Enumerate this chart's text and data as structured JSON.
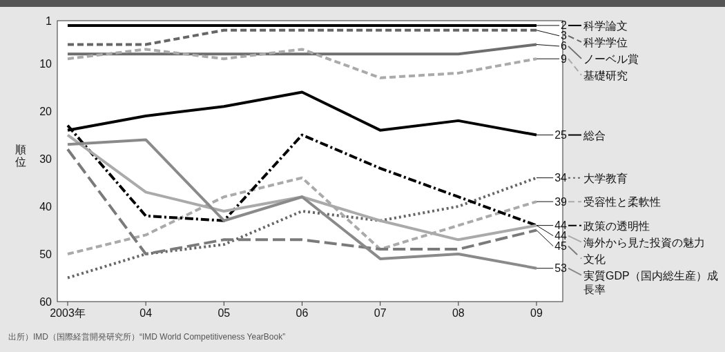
{
  "chart_data": {
    "type": "line",
    "ylabel": "順位",
    "categories": [
      "2003年",
      "04",
      "05",
      "06",
      "07",
      "08",
      "09"
    ],
    "ylim": [
      60,
      1
    ],
    "yticks": [
      1,
      10,
      20,
      30,
      40,
      50,
      60
    ],
    "grid": false,
    "legend": "right",
    "marker": "none",
    "series": [
      {
        "name": "科学論文",
        "color": "#000000",
        "line_style": "solid",
        "values": [
          2,
          2,
          2,
          2,
          2,
          2,
          2
        ],
        "value_labels": [
          null,
          null,
          null,
          null,
          null,
          null,
          "2"
        ]
      },
      {
        "name": "科学学位",
        "color": "#666666",
        "line_style": "dashed",
        "values": [
          6,
          6,
          3,
          3,
          3,
          3,
          3
        ],
        "value_labels": [
          null,
          null,
          null,
          null,
          null,
          null,
          "3"
        ]
      },
      {
        "name": "ノーベル賞",
        "color": "#6e6e6e",
        "line_style": "solid",
        "values": [
          8,
          8,
          8,
          8,
          8,
          8,
          6
        ],
        "value_labels": [
          null,
          null,
          null,
          null,
          null,
          null,
          "6"
        ]
      },
      {
        "name": "基礎研究",
        "color": "#aaaaaa",
        "line_style": "dashed",
        "values": [
          9,
          7,
          9,
          7,
          13,
          12,
          9
        ],
        "value_labels": [
          null,
          null,
          null,
          null,
          null,
          null,
          "9"
        ]
      },
      {
        "name": "総合",
        "color": "#000000",
        "line_style": "solid",
        "values": [
          24,
          21,
          19,
          16,
          24,
          22,
          25
        ],
        "value_labels": [
          null,
          null,
          null,
          null,
          null,
          null,
          "25"
        ]
      },
      {
        "name": "大学教育",
        "color": "#666666",
        "line_style": "dotted",
        "values": [
          55,
          50,
          48,
          41,
          43,
          40,
          34
        ],
        "value_labels": [
          null,
          null,
          null,
          null,
          null,
          null,
          "34"
        ]
      },
      {
        "name": "受容性と柔軟性",
        "color": "#aaaaaa",
        "line_style": "dashed",
        "values": [
          50,
          46,
          38,
          34,
          49,
          44,
          39
        ],
        "value_labels": [
          null,
          null,
          null,
          null,
          null,
          null,
          "39"
        ]
      },
      {
        "name": "政策の透明性",
        "color": "#000000",
        "line_style": "dashdot",
        "values": [
          23,
          42,
          43,
          25,
          32,
          38,
          44
        ],
        "value_labels": [
          null,
          null,
          null,
          null,
          null,
          null,
          "44"
        ]
      },
      {
        "name": "海外から見た投資の魅力",
        "color": "#aaaaaa",
        "line_style": "solid",
        "values": [
          25,
          37,
          41,
          38,
          43,
          47,
          44
        ],
        "value_labels": [
          null,
          null,
          null,
          null,
          null,
          null,
          "44"
        ]
      },
      {
        "name": "文化",
        "color": "#7a7a7a",
        "line_style": "longdash",
        "values": [
          28,
          50,
          47,
          47,
          49,
          49,
          45
        ],
        "value_labels": [
          null,
          null,
          null,
          null,
          null,
          null,
          "45"
        ]
      },
      {
        "name": "実質GDP（国内総生産）成長率",
        "color": "#8a8a8a",
        "line_style": "solid",
        "values": [
          27,
          26,
          43,
          38,
          51,
          50,
          53
        ],
        "value_labels": [
          null,
          null,
          null,
          null,
          null,
          null,
          "53"
        ]
      }
    ],
    "annotations": [
      "出所）IMD（国際経営開発研究所）“IMD World Competitiveness YearBook”"
    ]
  }
}
